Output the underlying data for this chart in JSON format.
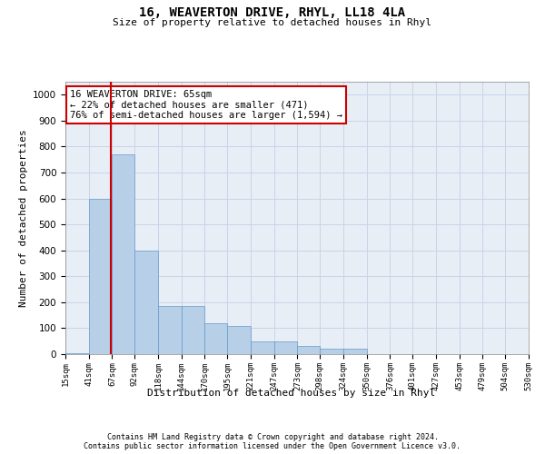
{
  "title": "16, WEAVERTON DRIVE, RHYL, LL18 4LA",
  "subtitle": "Size of property relative to detached houses in Rhyl",
  "xlabel": "Distribution of detached houses by size in Rhyl",
  "ylabel": "Number of detached properties",
  "bins": [
    "15sqm",
    "41sqm",
    "67sqm",
    "92sqm",
    "118sqm",
    "144sqm",
    "170sqm",
    "195sqm",
    "221sqm",
    "247sqm",
    "273sqm",
    "298sqm",
    "324sqm",
    "350sqm",
    "376sqm",
    "401sqm",
    "427sqm",
    "453sqm",
    "479sqm",
    "504sqm",
    "530sqm"
  ],
  "bin_edges": [
    15,
    41,
    67,
    92,
    118,
    144,
    170,
    195,
    221,
    247,
    273,
    298,
    324,
    350,
    376,
    401,
    427,
    453,
    479,
    504,
    530
  ],
  "values": [
    5,
    600,
    770,
    400,
    185,
    185,
    120,
    110,
    50,
    50,
    30,
    20,
    20,
    0,
    0,
    0,
    0,
    0,
    0,
    0
  ],
  "bar_color": "#b8cfe8",
  "bar_edge_color": "#6699cc",
  "grid_color": "#c8d4e8",
  "property_line_x": 65,
  "property_line_color": "#cc0000",
  "annotation_text": "16 WEAVERTON DRIVE: 65sqm\n← 22% of detached houses are smaller (471)\n76% of semi-detached houses are larger (1,594) →",
  "annotation_box_color": "#cc0000",
  "ylim": [
    0,
    1050
  ],
  "xlim": [
    15,
    530
  ],
  "footer1": "Contains HM Land Registry data © Crown copyright and database right 2024.",
  "footer2": "Contains public sector information licensed under the Open Government Licence v3.0."
}
